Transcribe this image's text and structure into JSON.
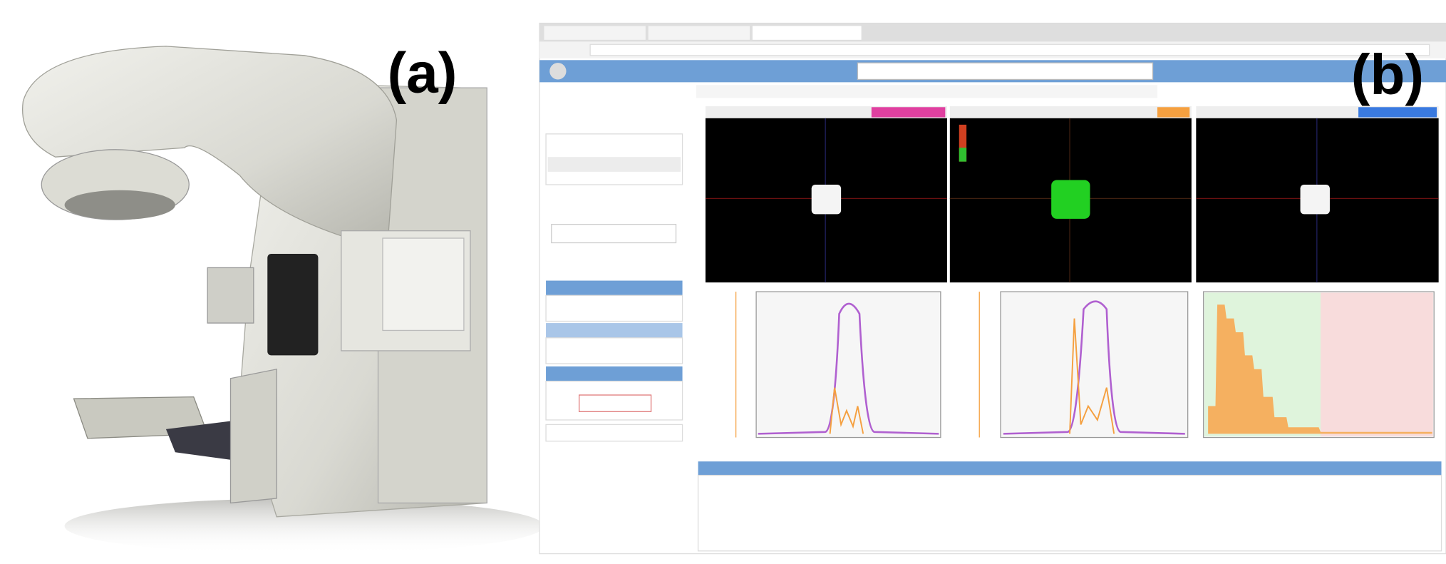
{
  "panels": {
    "a": {
      "label": "(a)"
    },
    "b": {
      "label": "(b)"
    }
  }
}
